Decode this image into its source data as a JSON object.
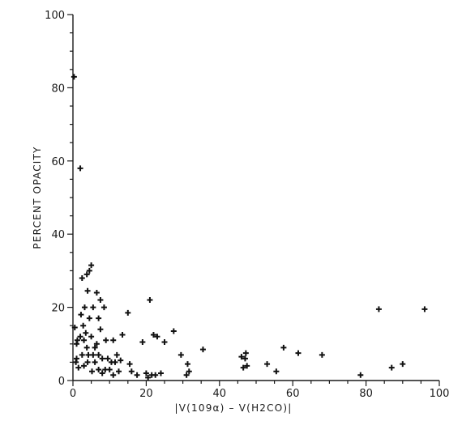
{
  "chart_data": {
    "type": "scatter",
    "title": "",
    "xlabel": "|V(109α) – V(H2CO)|",
    "ylabel": "PERCENT OPACITY",
    "xlim": [
      0,
      100
    ],
    "ylim": [
      0,
      100
    ],
    "xticks": [
      "0",
      "20",
      "40",
      "60",
      "80",
      "100"
    ],
    "yticks": [
      "0",
      "20",
      "40",
      "60",
      "80",
      "100"
    ],
    "grid": false,
    "marker": "plus",
    "color": "#111111",
    "points": [
      [
        0.3,
        83
      ],
      [
        2,
        58
      ],
      [
        0.5,
        14.5
      ],
      [
        1,
        10
      ],
      [
        1,
        6
      ],
      [
        1.5,
        3.5
      ],
      [
        0.8,
        5
      ],
      [
        1.2,
        11
      ],
      [
        2,
        12
      ],
      [
        2.2,
        18
      ],
      [
        2.5,
        7
      ],
      [
        2.5,
        28
      ],
      [
        2.8,
        15
      ],
      [
        3,
        4
      ],
      [
        3,
        11
      ],
      [
        3.2,
        20
      ],
      [
        3.5,
        13
      ],
      [
        3.8,
        9
      ],
      [
        3.8,
        29
      ],
      [
        4,
        5
      ],
      [
        4,
        24.5
      ],
      [
        4.2,
        7
      ],
      [
        4.5,
        17
      ],
      [
        4.5,
        30
      ],
      [
        5,
        12
      ],
      [
        5,
        31.5
      ],
      [
        5.2,
        2.5
      ],
      [
        5.5,
        7
      ],
      [
        5.5,
        20
      ],
      [
        6,
        9
      ],
      [
        6,
        5
      ],
      [
        6.5,
        10
      ],
      [
        6.5,
        24
      ],
      [
        7,
        7
      ],
      [
        7,
        17
      ],
      [
        7,
        3
      ],
      [
        7.5,
        22
      ],
      [
        7.5,
        14
      ],
      [
        8,
        6
      ],
      [
        8,
        2
      ],
      [
        8.5,
        20
      ],
      [
        8.8,
        3
      ],
      [
        9,
        11
      ],
      [
        9.5,
        6
      ],
      [
        10,
        3
      ],
      [
        10.5,
        5
      ],
      [
        11,
        1.5
      ],
      [
        11,
        11
      ],
      [
        11.5,
        5
      ],
      [
        12,
        7
      ],
      [
        12.5,
        2.5
      ],
      [
        13,
        5.5
      ],
      [
        13.5,
        12.5
      ],
      [
        15,
        18.5
      ],
      [
        15.5,
        4.5
      ],
      [
        16,
        2.5
      ],
      [
        17.5,
        1.5
      ],
      [
        19,
        10.5
      ],
      [
        20,
        2
      ],
      [
        20.5,
        0.8
      ],
      [
        21,
        22
      ],
      [
        21.5,
        1.5
      ],
      [
        22,
        12.5
      ],
      [
        22.5,
        1.5
      ],
      [
        23,
        12
      ],
      [
        24,
        2
      ],
      [
        25,
        10.5
      ],
      [
        27.5,
        13.5
      ],
      [
        29.5,
        7
      ],
      [
        31,
        1.5
      ],
      [
        31.3,
        4.5
      ],
      [
        31.7,
        2.5
      ],
      [
        35.5,
        8.5
      ],
      [
        46,
        6.5
      ],
      [
        46.5,
        3.5
      ],
      [
        47,
        6
      ],
      [
        47.2,
        7.5
      ],
      [
        47.5,
        4
      ],
      [
        53,
        4.5
      ],
      [
        55.5,
        2.5
      ],
      [
        57.5,
        9
      ],
      [
        61.5,
        7.5
      ],
      [
        68,
        7
      ],
      [
        78.5,
        1.5
      ],
      [
        83.5,
        19.5
      ],
      [
        87,
        3.5
      ],
      [
        90,
        4.5
      ],
      [
        96,
        19.5
      ]
    ]
  }
}
